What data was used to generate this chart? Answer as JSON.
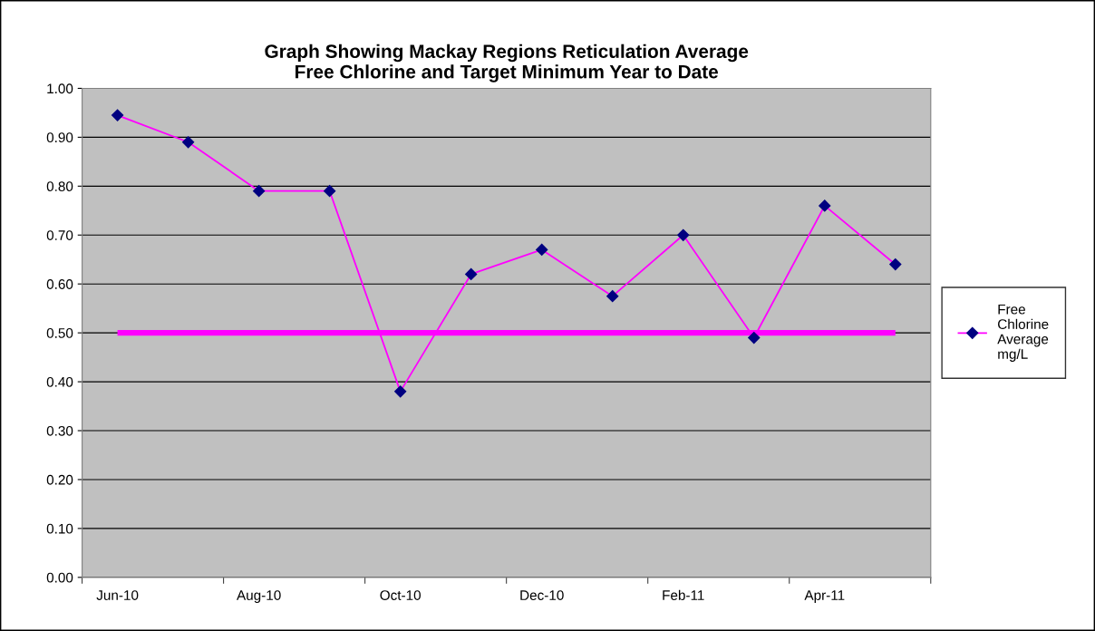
{
  "chart_data": {
    "type": "line",
    "title": "Graph Showing Mackay Regions Reticulation Average Free Chlorine and Target Minimum Year to Date",
    "categories": [
      "Jun-10",
      null,
      "Aug-10",
      null,
      "Oct-10",
      null,
      "Dec-10",
      null,
      "Feb-11",
      null,
      "Apr-11",
      null
    ],
    "series": [
      {
        "name": "Free Chlorine Average mg/L",
        "color": "#ff00ff",
        "values": [
          0.945,
          0.89,
          0.79,
          0.79,
          0.38,
          0.62,
          0.67,
          0.575,
          0.7,
          0.49,
          0.76,
          0.64
        ]
      }
    ],
    "ylim": [
      0,
      1
    ],
    "yticks": [
      {
        "value": 0,
        "label": "0.00"
      },
      {
        "value": 0.1,
        "label": "0.10"
      },
      {
        "value": 0.2,
        "label": "0.20"
      },
      {
        "value": 0.3,
        "label": "0.30"
      },
      {
        "value": 0.4,
        "label": "0.40"
      },
      {
        "value": 0.5,
        "label": "0.50"
      },
      {
        "value": 0.6,
        "label": "0.60"
      },
      {
        "value": 0.7,
        "label": "0.70"
      },
      {
        "value": 0.8,
        "label": "0.80"
      },
      {
        "value": 0.9,
        "label": "0.90"
      },
      {
        "value": 1,
        "label": "1.00"
      }
    ],
    "ref_lines": [
      {
        "axis": "y",
        "value": 0.5,
        "color": "#ff00ff"
      }
    ],
    "grid": "y",
    "legend": "right",
    "marker": "diamond",
    "line_style": "solid"
  }
}
